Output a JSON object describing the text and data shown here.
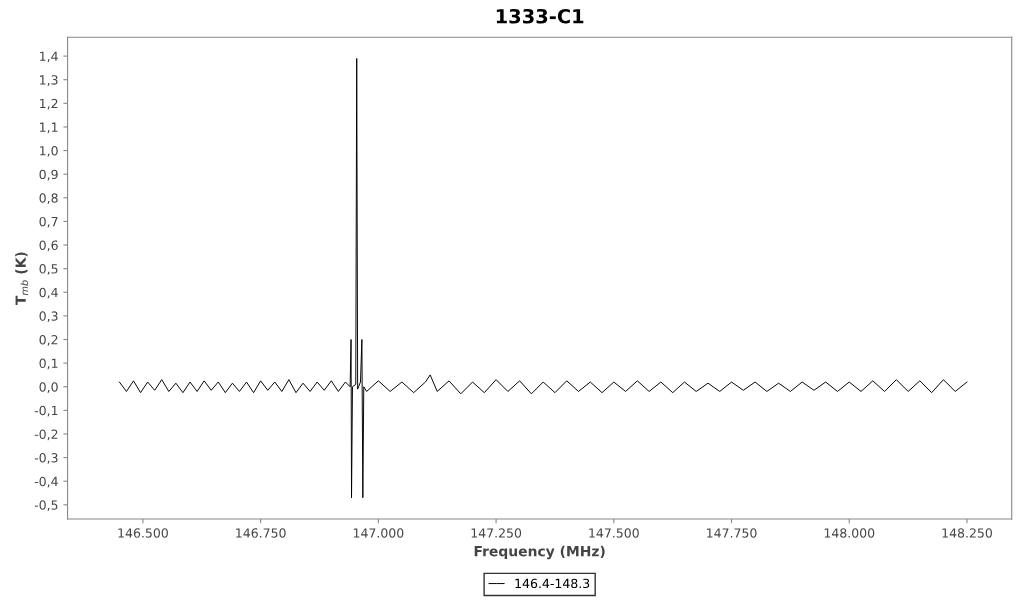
{
  "chart_data": {
    "type": "line",
    "title": "1333-C1",
    "xlabel": "Frequency (MHz)",
    "ylabel": "T$_{mb}$ (K)",
    "series": [
      {
        "name": "146.4-148.3",
        "color": "#000000",
        "x": [
          146450,
          146465,
          146480,
          146495,
          146510,
          146525,
          146540,
          146555,
          146570,
          146585,
          146600,
          146615,
          146630,
          146645,
          146660,
          146675,
          146690,
          146705,
          146720,
          146735,
          146750,
          146765,
          146780,
          146795,
          146810,
          146825,
          146840,
          146855,
          146870,
          146885,
          146900,
          146915,
          146930,
          146940,
          146942,
          146943,
          146945,
          146952,
          146954,
          146956,
          146962,
          146965,
          146967,
          146969,
          146975,
          147000,
          147025,
          147050,
          147075,
          147100,
          147110,
          147125,
          147150,
          147175,
          147200,
          147225,
          147250,
          147275,
          147300,
          147325,
          147350,
          147375,
          147400,
          147425,
          147450,
          147475,
          147500,
          147525,
          147550,
          147575,
          147600,
          147625,
          147650,
          147675,
          147700,
          147725,
          147750,
          147775,
          147800,
          147825,
          147850,
          147875,
          147900,
          147925,
          147950,
          147975,
          148000,
          148025,
          148050,
          148075,
          148100,
          148125,
          148150,
          148175,
          148200,
          148225,
          148250
        ],
        "values": [
          0.02,
          -0.02,
          0.025,
          -0.025,
          0.02,
          -0.015,
          0.03,
          -0.02,
          0.015,
          -0.025,
          0.02,
          -0.02,
          0.025,
          -0.015,
          0.02,
          -0.025,
          0.015,
          -0.02,
          0.02,
          -0.025,
          0.025,
          -0.015,
          0.02,
          -0.02,
          0.03,
          -0.025,
          0.015,
          -0.02,
          0.02,
          -0.015,
          0.025,
          -0.02,
          0.02,
          0.0,
          0.2,
          -0.47,
          0.0,
          0.01,
          1.39,
          -0.01,
          0.02,
          0.2,
          -0.47,
          0.0,
          -0.02,
          0.025,
          -0.02,
          0.02,
          -0.025,
          0.02,
          0.05,
          -0.02,
          0.025,
          -0.03,
          0.02,
          -0.025,
          0.03,
          -0.02,
          0.025,
          -0.03,
          0.02,
          -0.025,
          0.025,
          -0.02,
          0.02,
          -0.025,
          0.02,
          -0.02,
          0.025,
          -0.02,
          0.02,
          -0.025,
          0.02,
          -0.02,
          0.015,
          -0.02,
          0.02,
          -0.015,
          0.02,
          -0.02,
          0.015,
          -0.02,
          0.02,
          -0.015,
          0.02,
          -0.02,
          0.02,
          -0.02,
          0.025,
          -0.02,
          0.03,
          -0.02,
          0.025,
          -0.025,
          0.03,
          -0.02,
          0.02
        ]
      }
    ],
    "xlim": [
      146340,
      148345
    ],
    "ylim": [
      -0.56,
      1.48
    ],
    "xticks": [
      {
        "value": 146500,
        "label": "146.500"
      },
      {
        "value": 146750,
        "label": "146.750"
      },
      {
        "value": 147000,
        "label": "147.000"
      },
      {
        "value": 147250,
        "label": "147.250"
      },
      {
        "value": 147500,
        "label": "147.500"
      },
      {
        "value": 147750,
        "label": "147.750"
      },
      {
        "value": 148000,
        "label": "148.000"
      },
      {
        "value": 148250,
        "label": "148.250"
      }
    ],
    "yticks": [
      {
        "value": -0.5,
        "label": "-0,5"
      },
      {
        "value": -0.4,
        "label": "-0,4"
      },
      {
        "value": -0.3,
        "label": "-0,3"
      },
      {
        "value": -0.2,
        "label": "-0,2"
      },
      {
        "value": -0.1,
        "label": "-0,1"
      },
      {
        "value": 0.0,
        "label": "0,0"
      },
      {
        "value": 0.1,
        "label": "0,1"
      },
      {
        "value": 0.2,
        "label": "0,2"
      },
      {
        "value": 0.3,
        "label": "0,3"
      },
      {
        "value": 0.4,
        "label": "0,4"
      },
      {
        "value": 0.5,
        "label": "0,5"
      },
      {
        "value": 0.6,
        "label": "0,6"
      },
      {
        "value": 0.7,
        "label": "0,7"
      },
      {
        "value": 0.8,
        "label": "0,8"
      },
      {
        "value": 0.9,
        "label": "0,9"
      },
      {
        "value": 1.0,
        "label": "1,0"
      },
      {
        "value": 1.1,
        "label": "1,1"
      },
      {
        "value": 1.2,
        "label": "1,2"
      },
      {
        "value": 1.3,
        "label": "1,3"
      },
      {
        "value": 1.4,
        "label": "1,4"
      }
    ],
    "grid": false,
    "legend": "bottom",
    "marker": "none",
    "line_style": "solid"
  }
}
